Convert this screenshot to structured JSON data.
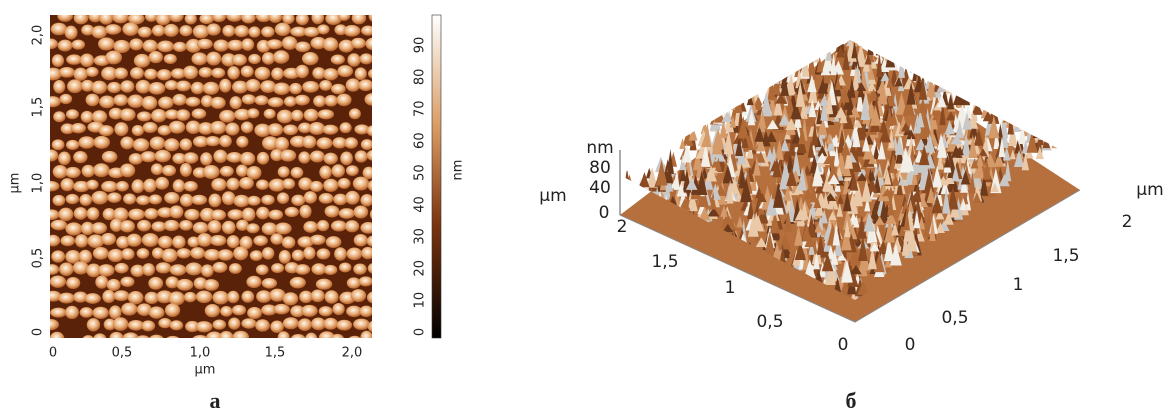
{
  "panel_a": {
    "x_ticks": [
      "0",
      "0,5",
      "1,0",
      "1,5",
      "2,0"
    ],
    "y_ticks": [
      "0",
      "0,5",
      "1,0",
      "1,5",
      "2,0"
    ],
    "x_label": "μm",
    "y_label": "μm",
    "colorbar_ticks": [
      "0",
      "10",
      "20",
      "30",
      "40",
      "50",
      "60",
      "70",
      "80",
      "90"
    ],
    "colorbar_label": "nm",
    "caption": "а"
  },
  "panel_b": {
    "z_label": "nm",
    "z_ticks": [
      "80",
      "40",
      "0"
    ],
    "z_unit": "μm",
    "left_axis_ticks": [
      "2",
      "1,5",
      "1",
      "0,5",
      "0"
    ],
    "right_axis_ticks": [
      "0",
      "0,5",
      "1",
      "1,5",
      "2"
    ],
    "right_axis_label": "μm",
    "caption": "б"
  }
}
